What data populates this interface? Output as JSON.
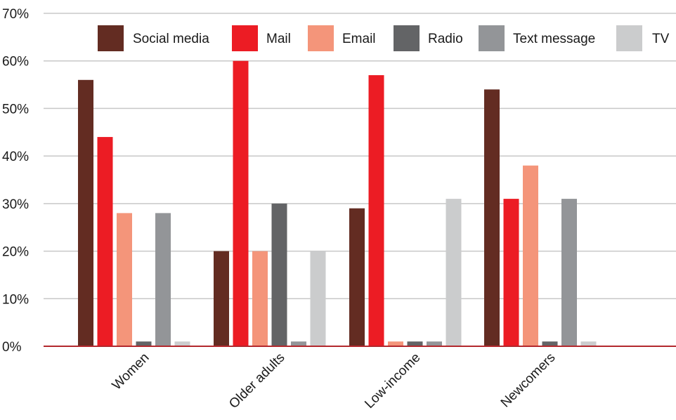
{
  "chart_data": {
    "type": "bar",
    "title": "",
    "xlabel": "",
    "ylabel": "",
    "ylim": [
      0,
      70
    ],
    "y_ticks": [
      0,
      10,
      20,
      30,
      40,
      50,
      60,
      70
    ],
    "y_tick_labels": [
      "0%",
      "10%",
      "20%",
      "30%",
      "40%",
      "50%",
      "60%",
      "70%"
    ],
    "grid": "horizontal",
    "legend_position": "top-right",
    "categories": [
      "Women",
      "Older adults",
      "Low-income",
      "Newcomers"
    ],
    "series": [
      {
        "name": "Social media",
        "color": "#632c22",
        "values": [
          56,
          20,
          29,
          54
        ]
      },
      {
        "name": "Mail",
        "color": "#ec1c24",
        "values": [
          44,
          60,
          57,
          31
        ]
      },
      {
        "name": "Email",
        "color": "#f4957a",
        "values": [
          28,
          20,
          1,
          38
        ]
      },
      {
        "name": "Radio",
        "color": "#636466",
        "values": [
          1,
          30,
          1,
          1
        ]
      },
      {
        "name": "Text message",
        "color": "#939598",
        "values": [
          28,
          1,
          1,
          31
        ]
      },
      {
        "name": "TV",
        "color": "#cbcccd",
        "values": [
          1,
          20,
          31,
          1
        ]
      }
    ],
    "axis_color": "#b3282d",
    "grid_color": "#c8c8c8"
  }
}
